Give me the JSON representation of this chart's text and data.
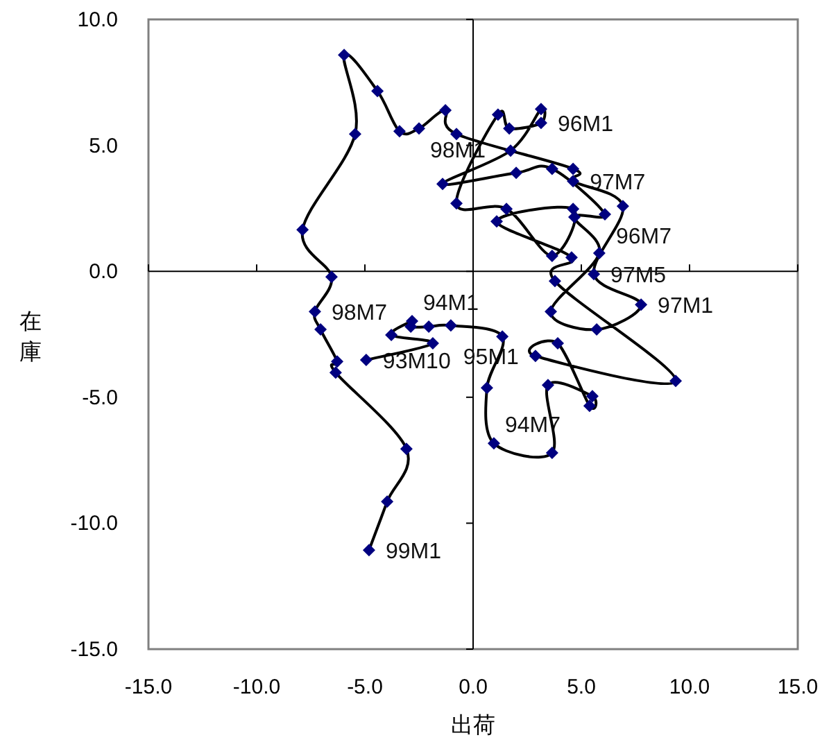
{
  "chart_data": {
    "type": "line",
    "xlabel": "出荷",
    "ylabel": "在庫",
    "xlim": [
      -15,
      15
    ],
    "ylim": [
      -15,
      10
    ],
    "xticks": [
      {
        "value": -15,
        "label": "-15.0"
      },
      {
        "value": -10,
        "label": "-10.0"
      },
      {
        "value": -5,
        "label": "-5.0"
      },
      {
        "value": 0,
        "label": "0.0"
      },
      {
        "value": 5,
        "label": "5.0"
      },
      {
        "value": 10,
        "label": "10.0"
      },
      {
        "value": 15,
        "label": "15.0"
      }
    ],
    "yticks": [
      {
        "value": -15,
        "label": "-15.0"
      },
      {
        "value": -10,
        "label": "-10.0"
      },
      {
        "value": -5,
        "label": "-5.0"
      },
      {
        "value": 0,
        "label": "0.0"
      },
      {
        "value": 5,
        "label": "5.0"
      },
      {
        "value": 10,
        "label": "10.0"
      }
    ],
    "marker": "diamond",
    "line_style": "solid",
    "series": [
      {
        "color": "#000080",
        "x": [
          -4.94,
          -1.86,
          -3.78,
          -2.82,
          -2.88,
          -2.05,
          -1.03,
          1.35,
          0.64,
          0.96,
          3.65,
          3.46,
          5.51,
          5.38,
          3.91,
          2.88,
          9.36,
          3.78,
          4.55,
          1.09,
          4.62,
          3.65,
          1.54,
          -0.77,
          1.15,
          1.67,
          3.14,
          3.14,
          1.73,
          -1.41,
          1.99,
          3.65,
          6.09,
          4.68,
          5.83,
          3.59,
          5.71,
          7.76,
          5.58,
          6.92,
          4.62,
          4.62,
          -0.77,
          -1.28,
          -2.5,
          -3.4,
          -4.42,
          -5.96,
          -5.45,
          -7.88,
          -6.54,
          -7.31,
          -7.05,
          -6.28,
          -6.35,
          -3.08,
          -3.97,
          -4.81
        ],
        "values": [
          -3.52,
          -2.86,
          -2.53,
          -1.98,
          -2.2,
          -2.2,
          -2.15,
          -2.59,
          -4.63,
          -6.83,
          -7.21,
          -4.52,
          -4.96,
          -5.34,
          -2.86,
          -3.36,
          -4.35,
          -0.39,
          0.55,
          1.98,
          2.48,
          0.61,
          2.48,
          2.7,
          6.22,
          5.67,
          5.89,
          6.44,
          4.79,
          3.47,
          3.91,
          4.07,
          2.26,
          2.15,
          0.72,
          -1.6,
          -2.31,
          -1.32,
          -0.11,
          2.59,
          3.58,
          4.07,
          5.45,
          6.39,
          5.67,
          5.56,
          7.16,
          8.59,
          5.45,
          1.65,
          -0.22,
          -1.6,
          -2.31,
          -3.58,
          -4.02,
          -7.05,
          -9.14,
          -11.07
        ]
      }
    ],
    "annotations": [
      {
        "text": "93M10",
        "x": -4.94,
        "y": -3.52
      },
      {
        "text": "94M1",
        "x": -2.82,
        "y": -1.98
      },
      {
        "text": "94M7",
        "x": 0.96,
        "y": -6.83
      },
      {
        "text": "95M1",
        "x": 2.88,
        "y": -3.36
      },
      {
        "text": "96M1",
        "x": 3.14,
        "y": 5.89
      },
      {
        "text": "96M7",
        "x": 6.09,
        "y": 2.26
      },
      {
        "text": "97M1",
        "x": 7.76,
        "y": -1.32
      },
      {
        "text": "97M5",
        "x": 5.58,
        "y": -0.11
      },
      {
        "text": "97M7",
        "x": 4.62,
        "y": 3.58
      },
      {
        "text": "98M1",
        "x": -2.5,
        "y": 5.67
      },
      {
        "text": "98M7",
        "x": -7.31,
        "y": -1.6
      },
      {
        "text": "99M1",
        "x": -4.81,
        "y": -11.07
      }
    ]
  }
}
